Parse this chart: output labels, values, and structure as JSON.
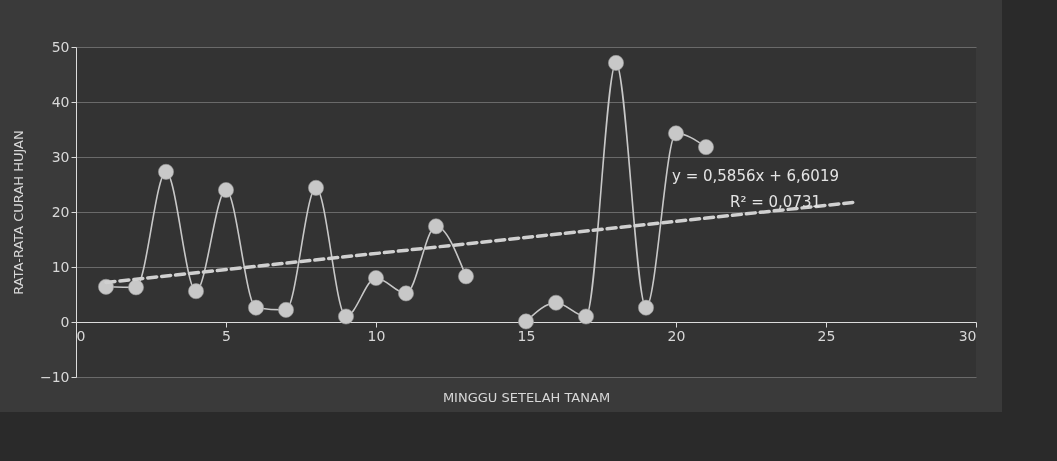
{
  "chart_data": {
    "type": "line",
    "xlabel": "MINGGU SETELAH TANAM",
    "ylabel": "RATA-RATA CURAH HUJAN",
    "x": [
      1,
      2,
      3,
      4,
      5,
      6,
      7,
      8,
      9,
      10,
      11,
      12,
      13,
      14,
      15,
      16,
      17,
      18,
      19,
      20,
      21
    ],
    "series": [
      {
        "color": "#c8c8c8",
        "marker": "circle",
        "values": [
          6.4,
          6.3,
          27.3,
          5.6,
          24.0,
          2.6,
          2.2,
          24.4,
          1.0,
          8.0,
          5.2,
          17.4,
          8.3,
          null,
          0.1,
          3.5,
          1.0,
          47.1,
          2.6,
          34.3,
          31.8
        ]
      },
      {
        "type": "line",
        "color": "#d0d0d0",
        "marker": "none",
        "line_style": "dashed",
        "x": [
          1,
          26
        ],
        "values": [
          7.2,
          21.8
        ]
      }
    ],
    "annotations": [
      "y = 0,5856x + 6,6019",
      "R² = 0,0731"
    ],
    "xlim": [
      0,
      30
    ],
    "xticks": [
      0,
      5,
      10,
      15,
      20,
      25,
      30
    ],
    "ylim": [
      -10,
      50
    ],
    "yticks": [
      -10,
      0,
      10,
      20,
      30,
      40,
      50
    ],
    "grid": "y"
  }
}
